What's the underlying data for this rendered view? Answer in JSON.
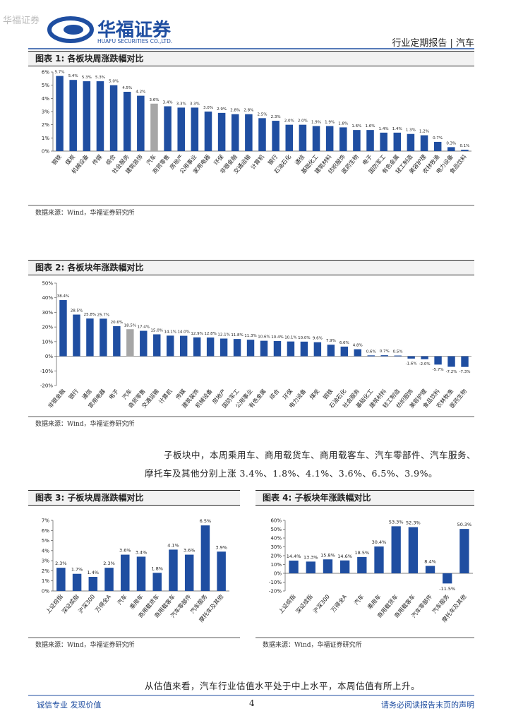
{
  "header": {
    "watermark": "华福证券",
    "logo": "华福证券",
    "logo_en": "HUAFU SECURITIES CO.,LTD.",
    "report": "行业定期报告 | 汽车"
  },
  "paragraphs": [
    "子板块中，本周乘用车、商用载货车、商用载客车、汽车零部件、汽车服务、",
    "摩托车及其他分别上涨 3.4%、1.8%、4.1%、3.6%、6.5%、3.9%。",
    "从估值来看，汽车行业估值水平处于中上水平，本周估值有所上升。"
  ],
  "footer": {
    "left": "诚信专业  发现价值",
    "page": "4",
    "right": "请务必阅读报告末页的声明"
  },
  "chart_data": [
    {
      "type": "bar",
      "title": "图表 1:  各板块周涨跌幅对比",
      "source": "数据来源：Wind，华福证券研究所",
      "categories": [
        "钢铁",
        "煤炭",
        "机械设备",
        "传媒",
        "综合",
        "社会服务",
        "建筑装饰",
        "汽车",
        "商贸零售",
        "房地产",
        "公用事业",
        "家用电器",
        "环保",
        "非银金融",
        "交通运输",
        "计算机",
        "银行",
        "石油石化",
        "通信",
        "基础化工",
        "建筑材料",
        "纺织服饰",
        "医药生物",
        "电子",
        "国防军工",
        "有色金属",
        "轻工制造",
        "美容护理",
        "农林牧渔",
        "电力设备",
        "食品饮料"
      ],
      "values": [
        5.7,
        5.4,
        5.3,
        5.3,
        5.0,
        4.5,
        4.2,
        3.6,
        3.4,
        3.3,
        3.3,
        3.0,
        2.9,
        2.8,
        2.8,
        2.5,
        2.3,
        2.0,
        2.0,
        1.9,
        1.9,
        1.8,
        1.6,
        1.6,
        1.4,
        1.4,
        1.3,
        1.2,
        0.7,
        0.3,
        0.1
      ],
      "value_labels": [
        "5.7%",
        "5.4%",
        "5.3%",
        "5.3%",
        "5.0%",
        "4.5%",
        "4.2%",
        "3.6%",
        "3.4%",
        "3.3%",
        "3.3%",
        "3.0%",
        "2.9%",
        "2.8%",
        "2.8%",
        "2.5%",
        "2.3%",
        "2.0%",
        "2.0%",
        "1.9%",
        "1.9%",
        "1.8%",
        "1.6%",
        "1.6%",
        "1.4%",
        "1.4%",
        "1.3%",
        "1.2%",
        "0.7%",
        "0.3%",
        "0.1%"
      ],
      "colors": [
        "#1f4ea1",
        "#1f4ea1",
        "#1f4ea1",
        "#1f4ea1",
        "#1f4ea1",
        "#1f4ea1",
        "#1f4ea1",
        "#a6a6a6",
        "#1f4ea1",
        "#1f4ea1",
        "#1f4ea1",
        "#1f4ea1",
        "#1f4ea1",
        "#1f4ea1",
        "#1f4ea1",
        "#1f4ea1",
        "#1f4ea1",
        "#1f4ea1",
        "#1f4ea1",
        "#1f4ea1",
        "#1f4ea1",
        "#1f4ea1",
        "#1f4ea1",
        "#1f4ea1",
        "#1f4ea1",
        "#1f4ea1",
        "#1f4ea1",
        "#1f4ea1",
        "#1f4ea1",
        "#1f4ea1",
        "#1f4ea1"
      ],
      "ylim": [
        0,
        6
      ],
      "yticks": [
        {
          "value": 0,
          "label": "0%"
        },
        {
          "value": 1,
          "label": "1%"
        },
        {
          "value": 2,
          "label": "2%"
        },
        {
          "value": 3,
          "label": "3%"
        },
        {
          "value": 4,
          "label": "4%"
        },
        {
          "value": 5,
          "label": "5%"
        },
        {
          "value": 6,
          "label": "6%"
        }
      ]
    },
    {
      "type": "bar",
      "title": "图表 2:  各板块年涨跌幅对比",
      "source": "数据来源：Wind，华福证券研究所",
      "categories": [
        "非银金融",
        "银行",
        "通信",
        "家用电器",
        "电子",
        "汽车",
        "商贸零售",
        "交通运输",
        "计算机",
        "传媒",
        "建筑装饰",
        "机械设备",
        "房地产",
        "国防军工",
        "公用事业",
        "有色金属",
        "综合",
        "环保",
        "电力设备",
        "煤炭",
        "钢铁",
        "石油石化",
        "社会服务",
        "基础化工",
        "建筑材料",
        "轻工制造",
        "纺织服饰",
        "美容护理",
        "食品饮料",
        "农林牧渔",
        "医药生物"
      ],
      "values": [
        38.4,
        28.5,
        25.8,
        25.7,
        20.6,
        18.5,
        17.4,
        15.0,
        14.1,
        14.0,
        12.9,
        12.8,
        12.1,
        11.8,
        11.3,
        10.6,
        10.4,
        10.1,
        10.0,
        9.6,
        7.9,
        6.6,
        4.8,
        0.6,
        0.7,
        0.5,
        -1.6,
        -2.0,
        -5.7,
        -7.2,
        -7.3
      ],
      "value_labels": [
        "38.4%",
        "28.5%",
        "25.8%",
        "25.7%",
        "20.6%",
        "18.5%",
        "17.4%",
        "15.0%",
        "14.1%",
        "14.0%",
        "12.9%",
        "12.8%",
        "12.1%",
        "11.8%",
        "11.3%",
        "10.6%",
        "10.4%",
        "10.1%",
        "10.0%",
        "9.6%",
        "7.9%",
        "6.6%",
        "4.8%",
        "0.6%",
        "0.7%",
        "0.5%",
        "-1.6%",
        "-2.0%",
        "-5.7%",
        "-7.2%",
        "-7.3%"
      ],
      "colors": [
        "#1f4ea1",
        "#1f4ea1",
        "#1f4ea1",
        "#1f4ea1",
        "#1f4ea1",
        "#a6a6a6",
        "#1f4ea1",
        "#1f4ea1",
        "#1f4ea1",
        "#1f4ea1",
        "#1f4ea1",
        "#1f4ea1",
        "#1f4ea1",
        "#1f4ea1",
        "#1f4ea1",
        "#1f4ea1",
        "#1f4ea1",
        "#1f4ea1",
        "#1f4ea1",
        "#1f4ea1",
        "#1f4ea1",
        "#1f4ea1",
        "#1f4ea1",
        "#1f4ea1",
        "#1f4ea1",
        "#1f4ea1",
        "#1f4ea1",
        "#1f4ea1",
        "#1f4ea1",
        "#1f4ea1",
        "#1f4ea1"
      ],
      "ylim": [
        -20,
        50
      ],
      "yticks": [
        {
          "value": -20,
          "label": "-20%"
        },
        {
          "value": -10,
          "label": "-10%"
        },
        {
          "value": 0,
          "label": "0%"
        },
        {
          "value": 10,
          "label": "10%"
        },
        {
          "value": 20,
          "label": "20%"
        },
        {
          "value": 30,
          "label": "30%"
        },
        {
          "value": 40,
          "label": "40%"
        },
        {
          "value": 50,
          "label": "50%"
        }
      ]
    },
    {
      "type": "bar",
      "title": "图表 3:  子板块周涨跌幅对比",
      "source": "数据来源：Wind，华福证券研究所",
      "categories": [
        "上证综指",
        "深证成指",
        "沪深300",
        "万得全A",
        "汽车",
        "乘用车",
        "商用载货车",
        "商用载客车",
        "汽车零部件",
        "汽车服务",
        "摩托车及其他"
      ],
      "values": [
        2.3,
        1.7,
        1.4,
        2.3,
        3.6,
        3.4,
        1.8,
        4.1,
        3.6,
        6.5,
        3.9
      ],
      "value_labels": [
        "2.3%",
        "1.7%",
        "1.4%",
        "2.3%",
        "3.6%",
        "3.4%",
        "1.8%",
        "4.1%",
        "3.6%",
        "6.5%",
        "3.9%"
      ],
      "color": "#1f4ea1",
      "ylim": [
        0,
        7
      ],
      "yticks": [
        {
          "value": 0,
          "label": "0%"
        },
        {
          "value": 1,
          "label": "1%"
        },
        {
          "value": 2,
          "label": "2%"
        },
        {
          "value": 3,
          "label": "3%"
        },
        {
          "value": 4,
          "label": "4%"
        },
        {
          "value": 5,
          "label": "5%"
        },
        {
          "value": 6,
          "label": "6%"
        },
        {
          "value": 7,
          "label": "7%"
        }
      ]
    },
    {
      "type": "bar",
      "title": "图表 4:  子板块年涨跌幅对比",
      "source": "数据来源：Wind，华福证券研究所",
      "categories": [
        "上证综指",
        "深证成指",
        "沪深300",
        "万得全A",
        "汽车",
        "乘用车",
        "商用载货车",
        "商用载客车",
        "汽车零部件",
        "汽车服务",
        "摩托车及其他"
      ],
      "values": [
        14.4,
        13.3,
        15.8,
        14.6,
        18.5,
        30.4,
        53.3,
        52.3,
        8.4,
        -11.5,
        50.3
      ],
      "value_labels": [
        "14.4%",
        "13.3%",
        "15.8%",
        "14.6%",
        "18.5%",
        "30.4%",
        "53.3%",
        "52.3%",
        "8.4%",
        "-11.5%",
        "50.3%"
      ],
      "color": "#1f4ea1",
      "ylim": [
        -20,
        60
      ],
      "yticks": [
        {
          "value": -20,
          "label": "-20%"
        },
        {
          "value": -10,
          "label": "-10%"
        },
        {
          "value": 0,
          "label": "0%"
        },
        {
          "value": 10,
          "label": "10%"
        },
        {
          "value": 20,
          "label": "20%"
        },
        {
          "value": 30,
          "label": "30%"
        },
        {
          "value": 40,
          "label": "40%"
        },
        {
          "value": 50,
          "label": "50%"
        },
        {
          "value": 60,
          "label": "60%"
        }
      ]
    }
  ]
}
